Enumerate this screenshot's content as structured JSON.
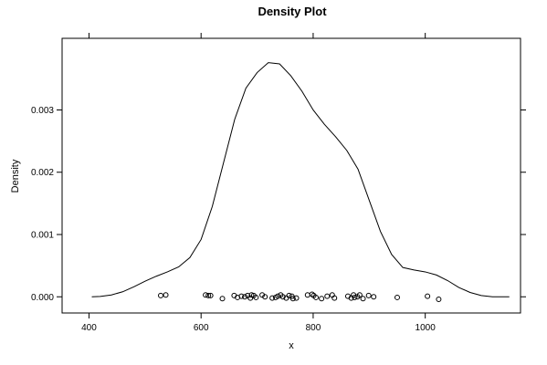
{
  "chart_data": {
    "type": "line",
    "title": "Density Plot",
    "xlabel": "x",
    "ylabel": "Density",
    "xlim": [
      352,
      1170
    ],
    "ylim": [
      -0.00026,
      0.00415
    ],
    "x_ticks": [
      400,
      600,
      800,
      1000
    ],
    "x_tick_labels": [
      "400",
      "600",
      "800",
      "1000"
    ],
    "y_ticks": [
      0.0,
      0.001,
      0.002,
      0.003
    ],
    "y_tick_labels": [
      "0.000",
      "0.001",
      "0.002",
      "0.003"
    ],
    "grid": false,
    "legend": "none",
    "density_curve": {
      "x": [
        405,
        420,
        440,
        460,
        480,
        500,
        520,
        540,
        560,
        580,
        600,
        620,
        640,
        660,
        680,
        700,
        720,
        740,
        760,
        780,
        800,
        820,
        840,
        860,
        880,
        900,
        920,
        940,
        960,
        980,
        1000,
        1020,
        1040,
        1060,
        1080,
        1100,
        1120,
        1150
      ],
      "y": [
        0.0,
        5e-06,
        3e-05,
        8e-05,
        0.00016,
        0.00025,
        0.00033,
        0.0004,
        0.00048,
        0.00063,
        0.00092,
        0.00145,
        0.00215,
        0.00285,
        0.00335,
        0.0036,
        0.00376,
        0.00374,
        0.00355,
        0.0033,
        0.003,
        0.00277,
        0.00257,
        0.00235,
        0.00205,
        0.00155,
        0.00105,
        0.00068,
        0.00047,
        0.00043,
        0.0004,
        0.00035,
        0.00026,
        0.00015,
        7e-05,
        2e-05,
        0.0,
        0.0
      ]
    },
    "rug_points": {
      "x": [
        528,
        537,
        608,
        613,
        617,
        638,
        659,
        665,
        672,
        678,
        683,
        688,
        690,
        694,
        698,
        709,
        714,
        727,
        733,
        737,
        742,
        746,
        752,
        757,
        762,
        764,
        770,
        790,
        798,
        801,
        805,
        815,
        825,
        834,
        838,
        862,
        868,
        872,
        874,
        879,
        883,
        889,
        899,
        908,
        950,
        1004,
        1024
      ],
      "y": [
        2e-05,
        3e-05,
        3e-05,
        2e-05,
        2e-05,
        -3e-05,
        2e-05,
        -1e-05,
        1e-05,
        0.0,
        2e-05,
        -2e-05,
        3e-05,
        2e-05,
        -1e-05,
        3e-05,
        0.0,
        -2e-05,
        -1e-05,
        1e-05,
        3e-05,
        0.0,
        -2e-05,
        2e-05,
        1e-05,
        -3e-05,
        -2e-05,
        3e-05,
        4e-05,
        2e-05,
        -1e-05,
        -3e-05,
        1e-05,
        3e-05,
        -2e-05,
        1e-05,
        -2e-05,
        3e-05,
        -1e-05,
        0.0,
        3e-05,
        -3e-05,
        2e-05,
        0.0,
        -1e-05,
        1e-05,
        -4e-05
      ]
    },
    "colors": {
      "line": "#000000",
      "points": "#000000",
      "frame": "#000000"
    }
  }
}
